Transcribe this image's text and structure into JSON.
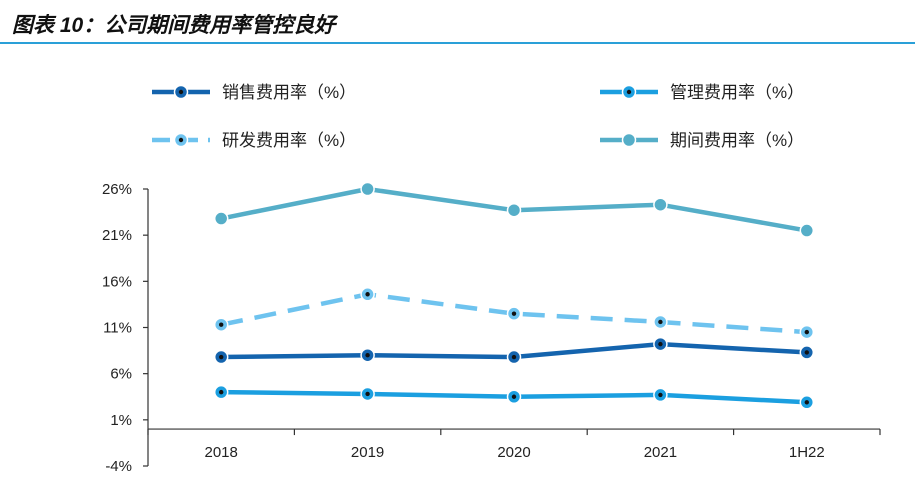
{
  "title": "图表 10：公司期间费用率管控良好",
  "chart_data": {
    "type": "line",
    "title": "图表 10：公司期间费用率管控良好",
    "categories": [
      "2018",
      "2019",
      "2020",
      "2021",
      "1H22"
    ],
    "ylim": [
      -4,
      26
    ],
    "yticks": [
      26,
      21,
      16,
      11,
      6,
      1,
      -4
    ],
    "ytick_labels": [
      "26%",
      "21%",
      "16%",
      "11%",
      "6%",
      "1%",
      "-4%"
    ],
    "grid": false,
    "legend_position": "top",
    "series": [
      {
        "name": "销售费用率（%）",
        "values": [
          7.8,
          8.0,
          7.8,
          9.2,
          8.3
        ],
        "color": "#1464ae",
        "style": "solid",
        "marker": "dot"
      },
      {
        "name": "管理费用率（%）",
        "values": [
          4.0,
          3.8,
          3.5,
          3.7,
          2.9
        ],
        "color": "#1b9fe0",
        "style": "solid",
        "marker": "dot"
      },
      {
        "name": "研发费用率（%）",
        "values": [
          11.3,
          14.6,
          12.5,
          11.6,
          10.5
        ],
        "color": "#6ec3ef",
        "style": "dashed",
        "marker": "dot"
      },
      {
        "name": "期间费用率（%）",
        "values": [
          22.8,
          26.0,
          23.7,
          24.3,
          21.5
        ],
        "color": "#55aec8",
        "style": "solid",
        "marker": "circle"
      }
    ]
  }
}
